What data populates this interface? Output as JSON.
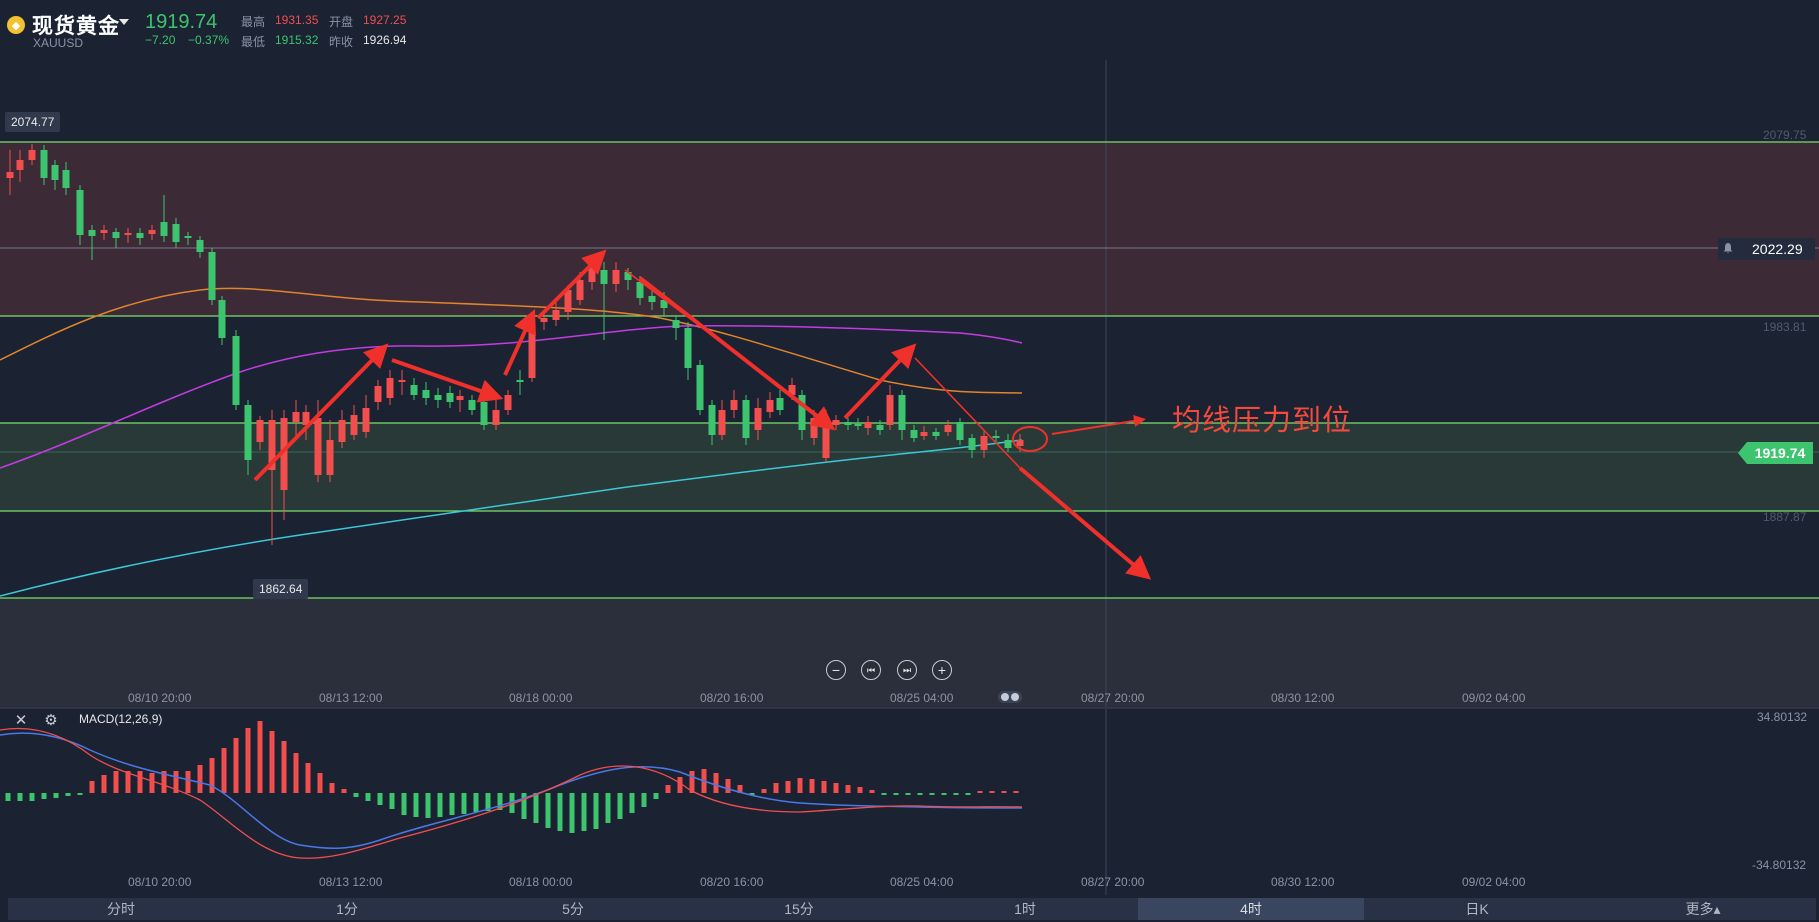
{
  "header": {
    "symbol_name": "现货黄金",
    "symbol_code": "XAUUSD",
    "price": "1919.74",
    "change": "−7.20",
    "change_pct": "−0.37%",
    "high_label": "最高",
    "high": "1931.35",
    "open_label": "开盘",
    "open": "1927.25",
    "low_label": "最低",
    "low": "1915.32",
    "prev_close_label": "昨收",
    "prev_close": "1926.94"
  },
  "chart": {
    "price_axis": [
      "2079.75",
      "1983.81",
      "1887.87"
    ],
    "high_tag": "2074.77",
    "low_tag": "1862.64",
    "current_price_tag": "1919.74",
    "alert_price": "2022.29",
    "time_axis": [
      "08/10 20:00",
      "08/13 12:00",
      "08/18 00:00",
      "08/20 16:00",
      "08/25 04:00",
      "08/27 20:00",
      "08/30 12:00",
      "09/02 04:00"
    ],
    "annotation": "均线压力到位",
    "colors": {
      "up": "#3cc56e",
      "down": "#f24e4e",
      "ma_orange": "#e0852c",
      "ma_magenta": "#c23ce0",
      "ma_cyan": "#3cc8d8",
      "level_line": "#7ae06a",
      "arrow": "#f0302a"
    }
  },
  "macd": {
    "label": "MACD(12,26,9)",
    "top_value": "34.80132",
    "bottom_value": "-34.80132",
    "time_axis": [
      "08/10 20:00",
      "08/13 12:00",
      "08/18 00:00",
      "08/20 16:00",
      "08/25 04:00",
      "08/27 20:00",
      "08/30 12:00",
      "09/02 04:00"
    ]
  },
  "tabs": [
    {
      "label": "分时",
      "active": false
    },
    {
      "label": "1分",
      "active": false
    },
    {
      "label": "5分",
      "active": false
    },
    {
      "label": "15分",
      "active": false
    },
    {
      "label": "1时",
      "active": false
    },
    {
      "label": "4时",
      "active": true
    },
    {
      "label": "日K",
      "active": false
    },
    {
      "label": "更多▴",
      "active": false
    }
  ],
  "icons": {
    "coin": "gold-coin-icon",
    "close": "close-icon",
    "settings": "settings-icon",
    "bell": "bell-icon",
    "zoom_out": "zoom-out-icon",
    "scroll_start": "scroll-start-icon",
    "scroll_end": "scroll-end-icon",
    "zoom_in": "zoom-in-icon"
  }
}
